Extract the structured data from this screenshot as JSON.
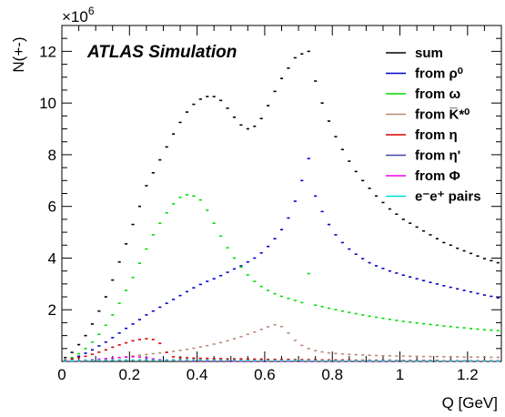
{
  "chart_data": {
    "type": "line",
    "title": "",
    "annotation": "ATLAS Simulation",
    "xlabel": "Q [GeV]",
    "ylabel": "N(+-)",
    "y_multiplier": "×10",
    "y_multiplier_exp": "6",
    "xlim": [
      0,
      1.3
    ],
    "ylim": [
      0,
      13
    ],
    "y_unit_multiplier": 1000000,
    "x_ticks": [
      0,
      0.2,
      0.4,
      0.6,
      0.8,
      1,
      1.2
    ],
    "x_tick_labels": [
      "0",
      "0.2",
      "0.4",
      "0.6",
      "0.8",
      "1",
      "1.2"
    ],
    "y_ticks": [
      2,
      4,
      6,
      8,
      10,
      12
    ],
    "y_tick_labels": [
      "2",
      "4",
      "6",
      "8",
      "10",
      "12"
    ],
    "legend_position": "top-right",
    "series": [
      {
        "name": "sum",
        "color": "#000000",
        "x": [
          0.01,
          0.03,
          0.05,
          0.07,
          0.09,
          0.11,
          0.13,
          0.15,
          0.17,
          0.19,
          0.21,
          0.23,
          0.25,
          0.27,
          0.29,
          0.31,
          0.33,
          0.35,
          0.37,
          0.39,
          0.41,
          0.43,
          0.45,
          0.47,
          0.49,
          0.51,
          0.53,
          0.55,
          0.57,
          0.59,
          0.61,
          0.63,
          0.65,
          0.67,
          0.69,
          0.71,
          0.73,
          0.75,
          0.77,
          0.79,
          0.81,
          0.83,
          0.85,
          0.87,
          0.89,
          0.91,
          0.93,
          0.95,
          0.97,
          0.99,
          1.01,
          1.03,
          1.05,
          1.07,
          1.09,
          1.11,
          1.13,
          1.15,
          1.17,
          1.19,
          1.21,
          1.23,
          1.25,
          1.27,
          1.29
        ],
        "values": [
          0.15,
          0.35,
          0.65,
          1.0,
          1.45,
          1.95,
          2.5,
          3.15,
          3.85,
          4.55,
          5.3,
          6.0,
          6.8,
          7.3,
          7.8,
          8.3,
          8.8,
          9.25,
          9.65,
          9.95,
          10.15,
          10.25,
          10.25,
          10.1,
          9.8,
          9.45,
          9.15,
          9.0,
          9.1,
          9.4,
          9.9,
          10.45,
          10.95,
          11.35,
          11.75,
          11.9,
          12.0,
          10.85,
          10.0,
          9.3,
          8.7,
          8.2,
          7.75,
          7.35,
          7.0,
          6.7,
          6.4,
          6.15,
          5.9,
          5.7,
          5.5,
          5.35,
          5.2,
          5.05,
          4.9,
          4.75,
          4.6,
          4.5,
          4.38,
          4.28,
          4.18,
          4.08,
          3.98,
          3.9,
          3.82
        ]
      },
      {
        "name": "from ρ⁰",
        "color": "#0000cc",
        "x": [
          0.01,
          0.03,
          0.05,
          0.07,
          0.09,
          0.11,
          0.13,
          0.15,
          0.17,
          0.19,
          0.21,
          0.23,
          0.25,
          0.27,
          0.29,
          0.31,
          0.33,
          0.35,
          0.37,
          0.39,
          0.41,
          0.43,
          0.45,
          0.47,
          0.49,
          0.51,
          0.53,
          0.55,
          0.57,
          0.59,
          0.61,
          0.63,
          0.65,
          0.67,
          0.69,
          0.71,
          0.73,
          0.75,
          0.77,
          0.79,
          0.81,
          0.83,
          0.85,
          0.87,
          0.89,
          0.91,
          0.93,
          0.95,
          0.97,
          0.99,
          1.01,
          1.03,
          1.05,
          1.07,
          1.09,
          1.11,
          1.13,
          1.15,
          1.17,
          1.19,
          1.21,
          1.23,
          1.25,
          1.27,
          1.29
        ],
        "values": [
          0.05,
          0.1,
          0.2,
          0.32,
          0.45,
          0.6,
          0.75,
          0.92,
          1.1,
          1.28,
          1.45,
          1.62,
          1.8,
          1.95,
          2.1,
          2.25,
          2.4,
          2.55,
          2.7,
          2.85,
          2.98,
          3.1,
          3.2,
          3.32,
          3.45,
          3.58,
          3.7,
          3.85,
          4.0,
          4.2,
          4.45,
          4.75,
          5.1,
          5.55,
          6.2,
          7.0,
          7.85,
          6.4,
          5.8,
          5.3,
          4.9,
          4.6,
          4.35,
          4.15,
          3.98,
          3.82,
          3.7,
          3.6,
          3.5,
          3.42,
          3.34,
          3.27,
          3.2,
          3.13,
          3.06,
          3.0,
          2.93,
          2.87,
          2.81,
          2.75,
          2.69,
          2.63,
          2.57,
          2.52,
          2.46
        ]
      },
      {
        "name": "from ω",
        "color": "#00dd00",
        "x": [
          0.01,
          0.03,
          0.05,
          0.07,
          0.09,
          0.11,
          0.13,
          0.15,
          0.17,
          0.19,
          0.21,
          0.23,
          0.25,
          0.27,
          0.29,
          0.31,
          0.33,
          0.35,
          0.37,
          0.39,
          0.41,
          0.43,
          0.45,
          0.47,
          0.49,
          0.51,
          0.53,
          0.55,
          0.57,
          0.59,
          0.61,
          0.63,
          0.65,
          0.67,
          0.69,
          0.71,
          0.73,
          0.75,
          0.77,
          0.79,
          0.81,
          0.83,
          0.85,
          0.87,
          0.89,
          0.91,
          0.93,
          0.95,
          0.97,
          0.99,
          1.01,
          1.03,
          1.05,
          1.07,
          1.09,
          1.11,
          1.13,
          1.15,
          1.17,
          1.19,
          1.21,
          1.23,
          1.25,
          1.27,
          1.29
        ],
        "values": [
          0.05,
          0.15,
          0.3,
          0.5,
          0.75,
          1.05,
          1.4,
          1.8,
          2.25,
          2.75,
          3.25,
          3.8,
          4.35,
          4.9,
          5.35,
          5.75,
          6.1,
          6.35,
          6.45,
          6.4,
          6.25,
          5.85,
          5.35,
          4.85,
          4.4,
          4.0,
          3.65,
          3.35,
          3.1,
          2.9,
          2.75,
          2.62,
          2.52,
          2.44,
          2.36,
          2.28,
          3.4,
          2.18,
          2.12,
          2.06,
          2.0,
          1.95,
          1.9,
          1.85,
          1.8,
          1.75,
          1.71,
          1.67,
          1.63,
          1.59,
          1.55,
          1.52,
          1.49,
          1.46,
          1.43,
          1.4,
          1.37,
          1.35,
          1.32,
          1.3,
          1.27,
          1.25,
          1.23,
          1.21,
          1.19
        ]
      },
      {
        "name": "from K̅*⁰",
        "color": "#bb8877",
        "x": [
          0.01,
          0.03,
          0.05,
          0.07,
          0.09,
          0.11,
          0.13,
          0.15,
          0.17,
          0.19,
          0.21,
          0.23,
          0.25,
          0.27,
          0.29,
          0.31,
          0.33,
          0.35,
          0.37,
          0.39,
          0.41,
          0.43,
          0.45,
          0.47,
          0.49,
          0.51,
          0.53,
          0.55,
          0.57,
          0.59,
          0.61,
          0.63,
          0.65,
          0.67,
          0.69,
          0.71,
          0.73,
          0.75,
          0.77,
          0.79,
          0.81,
          0.83,
          0.85,
          0.87,
          0.89,
          0.91,
          0.93,
          0.95,
          0.97,
          0.99,
          1.01,
          1.03,
          1.05,
          1.07,
          1.09,
          1.11,
          1.13,
          1.15,
          1.17,
          1.19,
          1.21,
          1.23,
          1.25,
          1.27,
          1.29
        ],
        "values": [
          0.0,
          0.01,
          0.02,
          0.04,
          0.06,
          0.08,
          0.1,
          0.12,
          0.15,
          0.18,
          0.21,
          0.24,
          0.27,
          0.3,
          0.33,
          0.36,
          0.39,
          0.43,
          0.47,
          0.51,
          0.56,
          0.61,
          0.67,
          0.73,
          0.8,
          0.88,
          0.96,
          1.05,
          1.14,
          1.24,
          1.34,
          1.42,
          1.35,
          1.1,
          0.82,
          0.62,
          0.5,
          0.42,
          0.37,
          0.33,
          0.31,
          0.29,
          0.27,
          0.26,
          0.25,
          0.24,
          0.23,
          0.22,
          0.22,
          0.21,
          0.21,
          0.2,
          0.2,
          0.19,
          0.19,
          0.19,
          0.18,
          0.18,
          0.18,
          0.17,
          0.17,
          0.17,
          0.16,
          0.16,
          0.16
        ]
      },
      {
        "name": "from η",
        "color": "#dd0000",
        "x": [
          0.01,
          0.03,
          0.05,
          0.07,
          0.09,
          0.11,
          0.13,
          0.15,
          0.17,
          0.19,
          0.21,
          0.23,
          0.25,
          0.27,
          0.29,
          0.31,
          0.33,
          0.35,
          0.37,
          0.39,
          0.41,
          0.43,
          0.45,
          0.47,
          0.49,
          0.51,
          0.53,
          0.55,
          0.57,
          0.59,
          0.61,
          0.63,
          0.65,
          0.67,
          0.69,
          0.71,
          0.73,
          0.75,
          0.77,
          0.79,
          0.81,
          0.83,
          0.85,
          0.87,
          0.89,
          0.91,
          0.93,
          0.95,
          0.97,
          0.99,
          1.01,
          1.03,
          1.05,
          1.07,
          1.09,
          1.11,
          1.13,
          1.15,
          1.17,
          1.19,
          1.21,
          1.23,
          1.25,
          1.27,
          1.29
        ],
        "values": [
          0.05,
          0.1,
          0.15,
          0.2,
          0.28,
          0.36,
          0.45,
          0.55,
          0.64,
          0.72,
          0.8,
          0.85,
          0.88,
          0.85,
          0.7,
          0.35,
          0.18,
          0.15,
          0.14,
          0.13,
          0.12,
          0.12,
          0.11,
          0.11,
          0.1,
          0.1,
          0.1,
          0.09,
          0.09,
          0.09,
          0.08,
          0.08,
          0.08,
          0.08,
          0.07,
          0.07,
          0.07,
          0.07,
          0.06,
          0.06,
          0.06,
          0.06,
          0.06,
          0.05,
          0.05,
          0.05,
          0.05,
          0.05,
          0.05,
          0.04,
          0.04,
          0.04,
          0.04,
          0.04,
          0.04,
          0.04,
          0.03,
          0.03,
          0.03,
          0.03,
          0.03,
          0.03,
          0.03,
          0.03,
          0.03
        ]
      },
      {
        "name": "from η'",
        "color": "#4444aa",
        "x": [
          0.01,
          0.03,
          0.05,
          0.07,
          0.09,
          0.11,
          0.13,
          0.15,
          0.17,
          0.19,
          0.21,
          0.23,
          0.25,
          0.27,
          0.29,
          0.31,
          0.33,
          0.35,
          0.37,
          0.39,
          0.41,
          0.43,
          0.45,
          0.47,
          0.49,
          0.51,
          0.53,
          0.55,
          0.57,
          0.59,
          0.61,
          0.63,
          0.65,
          0.67,
          0.69,
          0.71,
          0.73,
          0.75,
          0.77,
          0.79,
          0.81,
          0.83,
          0.85,
          0.87,
          0.89,
          0.91,
          0.93,
          0.95,
          0.97,
          0.99,
          1.01,
          1.03,
          1.05,
          1.07,
          1.09,
          1.11,
          1.13,
          1.15,
          1.17,
          1.19,
          1.21,
          1.23,
          1.25,
          1.27,
          1.29
        ],
        "values": [
          0.01,
          0.01,
          0.02,
          0.02,
          0.03,
          0.03,
          0.04,
          0.04,
          0.05,
          0.05,
          0.05,
          0.06,
          0.06,
          0.06,
          0.06,
          0.06,
          0.06,
          0.06,
          0.06,
          0.06,
          0.05,
          0.05,
          0.05,
          0.05,
          0.05,
          0.04,
          0.04,
          0.04,
          0.04,
          0.04,
          0.03,
          0.03,
          0.03,
          0.03,
          0.03,
          0.02,
          0.02,
          0.02,
          0.02,
          0.02,
          0.02,
          0.02,
          0.02,
          0.02,
          0.01,
          0.01,
          0.01,
          0.01,
          0.01,
          0.01,
          0.01,
          0.01,
          0.01,
          0.01,
          0.01,
          0.01,
          0.01,
          0.01,
          0.01,
          0.01,
          0.01,
          0.01,
          0.01,
          0.01,
          0.01
        ]
      },
      {
        "name": "from Φ",
        "color": "#ee00ee",
        "x": [
          0.01,
          0.03,
          0.05,
          0.07,
          0.09,
          0.11,
          0.13,
          0.15,
          0.17,
          0.19,
          0.21,
          0.23,
          0.25,
          0.27,
          0.29,
          0.31,
          0.33,
          0.35,
          0.37,
          0.39,
          0.41,
          0.43,
          0.45,
          0.47,
          0.49,
          0.51,
          0.53,
          0.55,
          0.57,
          0.59,
          0.61,
          0.63,
          0.65,
          0.67,
          0.69,
          0.71,
          0.73,
          0.75,
          0.77,
          0.79,
          0.81,
          0.83,
          0.85,
          0.87,
          0.89,
          0.91,
          0.93,
          0.95,
          0.97,
          0.99,
          1.01,
          1.03,
          1.05,
          1.07,
          1.09,
          1.11,
          1.13,
          1.15,
          1.17,
          1.19,
          1.21,
          1.23,
          1.25,
          1.27,
          1.29
        ],
        "values": [
          0.02,
          0.03,
          0.04,
          0.05,
          0.07,
          0.09,
          0.11,
          0.13,
          0.15,
          0.17,
          0.18,
          0.17,
          0.14,
          0.1,
          0.07,
          0.05,
          0.04,
          0.03,
          0.03,
          0.02,
          0.02,
          0.02,
          0.02,
          0.02,
          0.02,
          0.01,
          0.01,
          0.01,
          0.01,
          0.01,
          0.01,
          0.01,
          0.01,
          0.01,
          0.01,
          0.01,
          0.01,
          0.01,
          0.01,
          0.01,
          0.01,
          0.01,
          0.01,
          0.01,
          0.01,
          0.01,
          0.01,
          0.01,
          0.01,
          0.01,
          0.01,
          0.01,
          0.01,
          0.01,
          0.01,
          0.01,
          0.01,
          0.01,
          0.01,
          0.01,
          0.01,
          0.01,
          0.01,
          0.01,
          0.01
        ]
      },
      {
        "name": "e⁻e⁺ pairs",
        "color": "#00dddd",
        "x": [
          0.01,
          0.03,
          0.05,
          0.07,
          0.09,
          0.11,
          0.13,
          0.15,
          0.17,
          0.19,
          0.21,
          0.23,
          0.25,
          0.27,
          0.29,
          0.31,
          0.33,
          0.35,
          0.37,
          0.39,
          0.41,
          0.43,
          0.45,
          0.47,
          0.49,
          0.51,
          0.53,
          0.55,
          0.57,
          0.59,
          0.61,
          0.63,
          0.65,
          0.67,
          0.69,
          0.71,
          0.73,
          0.75,
          0.77,
          0.79,
          0.81,
          0.83,
          0.85,
          0.87,
          0.89,
          0.91,
          0.93,
          0.95,
          0.97,
          0.99,
          1.01,
          1.03,
          1.05,
          1.07,
          1.09,
          1.11,
          1.13,
          1.15,
          1.17,
          1.19,
          1.21,
          1.23,
          1.25,
          1.27,
          1.29
        ],
        "values": [
          0.02,
          0.03,
          0.04,
          0.05,
          0.05,
          0.05,
          0.05,
          0.05,
          0.05,
          0.05,
          0.05,
          0.05,
          0.05,
          0.05,
          0.05,
          0.05,
          0.05,
          0.05,
          0.05,
          0.05,
          0.05,
          0.05,
          0.05,
          0.05,
          0.05,
          0.05,
          0.04,
          0.04,
          0.04,
          0.04,
          0.04,
          0.04,
          0.04,
          0.04,
          0.04,
          0.04,
          0.04,
          0.03,
          0.03,
          0.03,
          0.03,
          0.03,
          0.03,
          0.03,
          0.03,
          0.03,
          0.03,
          0.03,
          0.03,
          0.03,
          0.02,
          0.02,
          0.02,
          0.02,
          0.02,
          0.02,
          0.02,
          0.02,
          0.02,
          0.02,
          0.02,
          0.02,
          0.02,
          0.02,
          0.02
        ]
      }
    ]
  }
}
